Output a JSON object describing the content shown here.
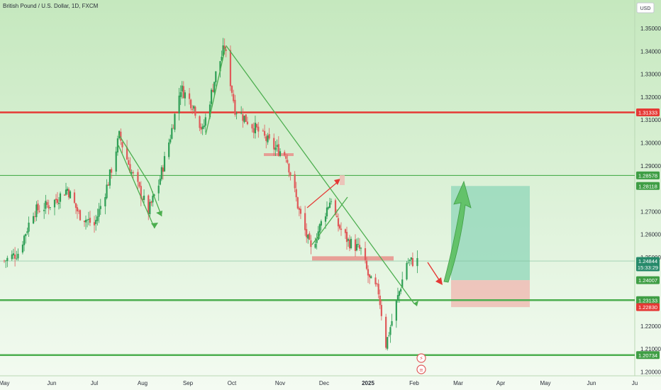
{
  "title": "British Pound / U.S. Dollar, 1D, FXCM",
  "currency_button": "USD",
  "colors": {
    "bg_top": "#cdecc7",
    "bg_bottom": "#f3fbf1",
    "up": "#2e9e55",
    "down": "#e05a5a",
    "green_line": "#4cae4f",
    "red_line": "#e53935",
    "label_green": "#3f9e45",
    "label_red": "#e53935",
    "label_teal": "#278a6b"
  },
  "chart_data": {
    "type": "candlestick",
    "title": "British Pound / U.S. Dollar, 1D, FXCM",
    "xlabel": "",
    "ylabel": "",
    "ylim": [
      1.2,
      1.355
    ],
    "x_ticks": [
      "May",
      "Jun",
      "Jul",
      "Aug",
      "Sep",
      "Oct",
      "Nov",
      "Dec",
      "2025",
      "Feb",
      "Mar",
      "Apr",
      "May",
      "Jun",
      "Ju"
    ],
    "y_ticks": [
      1.35,
      1.34,
      1.33,
      1.32,
      1.31,
      1.3,
      1.29,
      1.27,
      1.26,
      1.25,
      1.22,
      1.21,
      1.2
    ],
    "close_path": [
      [
        "2024-05-01",
        1.2485
      ],
      [
        "2024-05-10",
        1.252
      ],
      [
        "2024-05-20",
        1.27
      ],
      [
        "2024-06-01",
        1.2735
      ],
      [
        "2024-06-12",
        1.28
      ],
      [
        "2024-06-20",
        1.269
      ],
      [
        "2024-07-01",
        1.264
      ],
      [
        "2024-07-10",
        1.283
      ],
      [
        "2024-07-17",
        1.303
      ],
      [
        "2024-07-25",
        1.287
      ],
      [
        "2024-08-05",
        1.27
      ],
      [
        "2024-08-12",
        1.282
      ],
      [
        "2024-08-20",
        1.303
      ],
      [
        "2024-08-27",
        1.324
      ],
      [
        "2024-09-05",
        1.316
      ],
      [
        "2024-09-11",
        1.305
      ],
      [
        "2024-09-20",
        1.33
      ],
      [
        "2024-09-26",
        1.342
      ],
      [
        "2024-10-03",
        1.315
      ],
      [
        "2024-10-15",
        1.307
      ],
      [
        "2024-10-28",
        1.298
      ],
      [
        "2024-11-05",
        1.295
      ],
      [
        "2024-11-14",
        1.27
      ],
      [
        "2024-11-22",
        1.253
      ],
      [
        "2024-12-02",
        1.27
      ],
      [
        "2024-12-06",
        1.276
      ],
      [
        "2024-12-10",
        1.265
      ],
      [
        "2024-12-18",
        1.257
      ],
      [
        "2024-12-27",
        1.253
      ],
      [
        "2025-01-02",
        1.24
      ],
      [
        "2025-01-08",
        1.235
      ],
      [
        "2025-01-13",
        1.212
      ],
      [
        "2025-01-20",
        1.23
      ],
      [
        "2025-01-27",
        1.248
      ],
      [
        "2025-02-03",
        1.2484
      ]
    ],
    "horizontal_levels": [
      {
        "price": 1.31333,
        "label": "1.31333",
        "color": "red"
      },
      {
        "price": 1.28578,
        "label": "1.28578",
        "color": "green"
      },
      {
        "price": 1.23133,
        "label": "1.23133",
        "color": "green"
      },
      {
        "price": 1.20734,
        "label": "1.20734",
        "color": "green"
      }
    ],
    "price_labels": [
      {
        "price": 1.28118,
        "text": "1.28118",
        "color": "green"
      },
      {
        "price": 1.24844,
        "text": "1.24844",
        "sub": "15:33:29",
        "color": "teal"
      },
      {
        "price": 1.24007,
        "text": "1.24007",
        "color": "green"
      },
      {
        "price": 1.2283,
        "text": "1.22830",
        "color": "red"
      }
    ],
    "position": {
      "entry": 1.24007,
      "target": 1.28118,
      "stop": 1.2283
    },
    "trendline": {
      "from": [
        "2024-09-27",
        1.3425
      ],
      "to": [
        "2025-02-01",
        1.2298
      ]
    }
  }
}
